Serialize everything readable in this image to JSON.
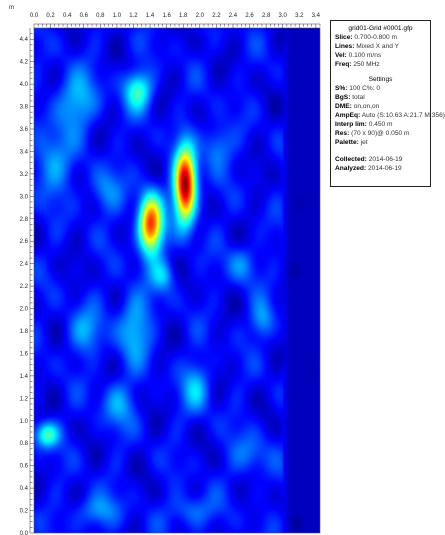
{
  "chart_data": {
    "type": "heatmap",
    "title": "grid01-Grid #0001.gfp",
    "unit_label": "m",
    "x_ticks": [
      "0.0",
      "0.2",
      "0.4",
      "0.6",
      "0.8",
      "1.0",
      "1.2",
      "1.4",
      "1.6",
      "1.8",
      "2.0",
      "2.2",
      "2.4",
      "2.6",
      "2.8",
      "3.0",
      "3.2",
      "3.4"
    ],
    "y_ticks": [
      "4.4",
      "4.2",
      "4.0",
      "3.8",
      "3.6",
      "3.4",
      "3.2",
      "3.0",
      "2.8",
      "2.6",
      "2.4",
      "2.2",
      "2.0",
      "1.8",
      "1.6",
      "1.4",
      "1.2",
      "1.0",
      "0.8",
      "0.6",
      "0.4",
      "0.2",
      "0.0"
    ],
    "xlim": [
      0.0,
      3.45
    ],
    "ylim": [
      0.0,
      4.5
    ],
    "colormap": "jet",
    "background_level": 0.12,
    "anomalies": [
      {
        "x": 1.82,
        "y": 3.1,
        "sx": 0.09,
        "sy": 0.22,
        "amp": 0.88
      },
      {
        "x": 1.4,
        "y": 2.75,
        "sx": 0.1,
        "sy": 0.18,
        "amp": 0.72
      },
      {
        "x": 1.25,
        "y": 3.95,
        "sx": 0.12,
        "sy": 0.12,
        "amp": 0.3
      },
      {
        "x": 0.5,
        "y": 3.85,
        "sx": 0.18,
        "sy": 0.18,
        "amp": 0.2
      },
      {
        "x": 0.2,
        "y": 3.3,
        "sx": 0.16,
        "sy": 0.2,
        "amp": 0.18
      },
      {
        "x": 1.2,
        "y": 1.85,
        "sx": 0.14,
        "sy": 0.22,
        "amp": 0.2
      },
      {
        "x": 1.95,
        "y": 1.3,
        "sx": 0.12,
        "sy": 0.16,
        "amp": 0.18
      },
      {
        "x": 0.15,
        "y": 0.88,
        "sx": 0.1,
        "sy": 0.08,
        "amp": 0.32
      },
      {
        "x": 0.75,
        "y": 0.2,
        "sx": 0.18,
        "sy": 0.1,
        "amp": 0.16
      },
      {
        "x": 2.75,
        "y": 1.9,
        "sx": 0.1,
        "sy": 0.12,
        "amp": 0.16
      },
      {
        "x": 2.2,
        "y": 3.45,
        "sx": 0.12,
        "sy": 0.14,
        "amp": 0.16
      },
      {
        "x": 2.5,
        "y": 2.4,
        "sx": 0.12,
        "sy": 0.12,
        "amp": 0.14
      },
      {
        "x": 1.9,
        "y": 0.2,
        "sx": 0.18,
        "sy": 0.1,
        "amp": 0.14
      },
      {
        "x": 1.55,
        "y": 2.3,
        "sx": 0.1,
        "sy": 0.1,
        "amp": 0.18
      },
      {
        "x": 0.6,
        "y": 1.8,
        "sx": 0.15,
        "sy": 0.15,
        "amp": 0.15
      },
      {
        "x": 1.0,
        "y": 1.15,
        "sx": 0.14,
        "sy": 0.15,
        "amp": 0.15
      },
      {
        "x": 2.6,
        "y": 0.7,
        "sx": 0.16,
        "sy": 0.14,
        "amp": 0.12
      },
      {
        "x": 0.85,
        "y": 3.05,
        "sx": 0.14,
        "sy": 0.14,
        "amp": 0.14
      }
    ],
    "data_area_x_max": 3.0
  },
  "info": {
    "title": "grid01-Grid #0001.gfp",
    "rows1": [
      {
        "k": "Slice:",
        "v": "0.700-0.800 m"
      },
      {
        "k": "Lines:",
        "v": "Mixed X and Y"
      },
      {
        "k": "Vel:",
        "v": "0.100 m/ns"
      },
      {
        "k": "Freq:",
        "v": "250 MHz"
      }
    ],
    "settings_heading": "Settings",
    "rows2": [
      {
        "k": "S%:",
        "v": "100  C%: 0"
      },
      {
        "k": "BgS:",
        "v": "total"
      },
      {
        "k": "DME:",
        "v": "on,on,on"
      },
      {
        "k": "AmpEq:",
        "v": "Auto (S:10.63 A:21.7 M:356)"
      },
      {
        "k": "Interp lim:",
        "v": "0.450 m"
      },
      {
        "k": "Res:",
        "v": "(70 x 90)@ 0.050 m"
      },
      {
        "k": "Palette:",
        "v": "jet"
      }
    ],
    "rows3": [
      {
        "k": "Collected:",
        "v": "2014-06-19"
      },
      {
        "k": "Analyzed:",
        "v": "2014-06-19"
      }
    ]
  }
}
